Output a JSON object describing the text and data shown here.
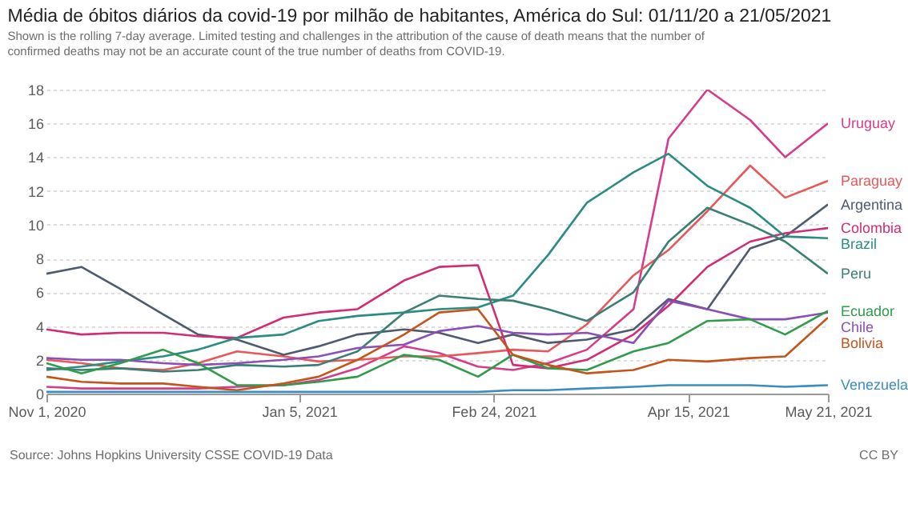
{
  "chart_data": {
    "type": "line",
    "title": "Média de óbitos diários da covid-19 por milhão de habitantes, América do Sul: 01/11/20 a 21/05/2021",
    "subtitle": "Shown is the rolling 7-day average. Limited testing and challenges in the attribution of the cause of death means that the number of confirmed deaths may not be an accurate count of the true number of deaths from COVID-19.",
    "annotations": [
      "Source: Johns Hopkins University CSSE COVID-19 Data",
      "CC BY"
    ],
    "x": [
      "2020-11-01",
      "2020-11-10",
      "2020-11-20",
      "2020-12-01",
      "2020-12-10",
      "2020-12-20",
      "2021-01-01",
      "2021-01-10",
      "2021-01-20",
      "2021-02-01",
      "2021-02-10",
      "2021-02-20",
      "2021-03-01",
      "2021-03-10",
      "2021-03-20",
      "2021-04-01",
      "2021-04-10",
      "2021-04-20",
      "2021-05-01",
      "2021-05-10",
      "2021-05-21"
    ],
    "series": [
      {
        "name": "Uruguay",
        "color": "#d73c8c",
        "values": [
          0.4,
          0.3,
          0.3,
          0.3,
          0.3,
          0.4,
          0.5,
          0.8,
          1.5,
          2.8,
          2.4,
          1.6,
          1.4,
          1.8,
          2.6,
          5.0,
          15.1,
          18.0,
          16.2,
          14.0,
          16.0
        ]
      },
      {
        "name": "Paraguay",
        "color": "#e8585a",
        "values": [
          2.0,
          1.8,
          1.5,
          1.4,
          1.8,
          2.5,
          2.2,
          1.9,
          2.0,
          2.2,
          2.2,
          2.4,
          2.6,
          2.5,
          4.1,
          7.0,
          8.5,
          10.8,
          13.5,
          11.6,
          12.6
        ]
      },
      {
        "name": "Argentina",
        "color": "#4e5a6e",
        "values": [
          7.1,
          7.5,
          6.2,
          4.7,
          3.5,
          3.2,
          2.3,
          2.8,
          3.5,
          3.8,
          3.6,
          3.0,
          3.5,
          3.0,
          3.2,
          3.8,
          5.6,
          5.0,
          8.6,
          9.3,
          11.2
        ]
      },
      {
        "name": "Colombia",
        "color": "#d12c74",
        "values": [
          3.8,
          3.5,
          3.6,
          3.6,
          3.4,
          3.3,
          4.5,
          4.8,
          5.0,
          6.7,
          7.5,
          7.6,
          1.7,
          1.5,
          2.0,
          3.5,
          5.2,
          7.5,
          9.0,
          9.5,
          9.8
        ]
      },
      {
        "name": "Brazil",
        "color": "#2a8c82",
        "values": [
          1.4,
          1.6,
          1.9,
          2.2,
          2.6,
          3.3,
          3.5,
          4.3,
          4.6,
          4.8,
          5.0,
          5.1,
          5.8,
          8.2,
          11.3,
          13.1,
          14.2,
          12.3,
          11.0,
          9.3,
          9.2
        ]
      },
      {
        "name": "Peru",
        "color": "#3a7f73",
        "values": [
          1.5,
          1.4,
          1.5,
          1.3,
          1.4,
          1.7,
          1.6,
          1.7,
          2.5,
          4.8,
          5.8,
          5.6,
          5.5,
          5.0,
          4.3,
          6.0,
          9.0,
          11.0,
          10.0,
          9.0,
          7.1
        ]
      },
      {
        "name": "Chile",
        "color": "#8c4fb5",
        "values": [
          2.1,
          2.0,
          2.0,
          1.8,
          1.7,
          1.8,
          2.0,
          2.2,
          2.7,
          2.9,
          3.7,
          4.0,
          3.6,
          3.5,
          3.6,
          3.0,
          5.5,
          5.0,
          4.4,
          4.4,
          4.8
        ]
      },
      {
        "name": "Ecuador",
        "color": "#2e9c4a",
        "values": [
          1.8,
          1.2,
          1.8,
          2.6,
          1.8,
          0.5,
          0.5,
          0.7,
          1.0,
          2.3,
          2.0,
          1.0,
          2.3,
          1.5,
          1.4,
          2.5,
          3.0,
          4.3,
          4.4,
          3.5,
          4.9
        ]
      },
      {
        "name": "Bolivia",
        "color": "#c4541c",
        "values": [
          1.0,
          0.7,
          0.6,
          0.6,
          0.4,
          0.2,
          0.6,
          1.0,
          2.0,
          3.5,
          4.8,
          5.0,
          2.3,
          1.7,
          1.2,
          1.4,
          2.0,
          1.9,
          2.1,
          2.2,
          4.5
        ]
      },
      {
        "name": "Venezuela",
        "color": "#3b8dbf",
        "values": [
          0.1,
          0.1,
          0.1,
          0.1,
          0.1,
          0.1,
          0.1,
          0.1,
          0.1,
          0.1,
          0.1,
          0.1,
          0.2,
          0.2,
          0.3,
          0.4,
          0.5,
          0.5,
          0.5,
          0.4,
          0.5
        ]
      }
    ],
    "xlim": [
      "2020-11-01",
      "2021-05-21"
    ],
    "xticks": [
      {
        "value": "2020-11-01",
        "label": "Nov 1, 2020"
      },
      {
        "value": "2021-01-05",
        "label": "Jan 5, 2021"
      },
      {
        "value": "2021-02-24",
        "label": "Feb 24, 2021"
      },
      {
        "value": "2021-04-15",
        "label": "Apr 15, 2021"
      },
      {
        "value": "2021-05-21",
        "label": "May 21, 2021"
      }
    ],
    "ylim": [
      0,
      18
    ],
    "yticks": [
      0,
      2,
      4,
      6,
      8,
      10,
      12,
      14,
      16,
      18
    ],
    "grid": "y"
  }
}
